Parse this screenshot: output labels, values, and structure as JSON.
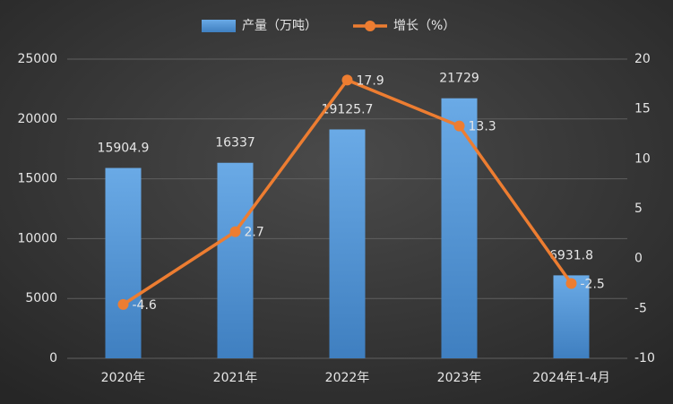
{
  "chart_data": {
    "type": "bar",
    "categories": [
      "2020年",
      "2021年",
      "2022年",
      "2023年",
      "2024年1-4月"
    ],
    "series": [
      {
        "name": "产量（万吨）",
        "type": "bar",
        "color": "#5b9bd5",
        "values": [
          15904.9,
          16337,
          19125.7,
          21729,
          6931.8
        ]
      },
      {
        "name": "增长（%）",
        "type": "line",
        "axis": "y2",
        "color": "#ed7d31",
        "values": [
          -4.6,
          2.7,
          17.9,
          13.3,
          -2.5
        ]
      }
    ],
    "ylim": [
      0,
      25000
    ],
    "yticks": [
      0,
      5000,
      10000,
      15000,
      20000,
      25000
    ],
    "y2lim": [
      -10,
      20
    ],
    "y2ticks": [
      -10,
      -5,
      0,
      5,
      10,
      15,
      20
    ],
    "grid": true,
    "legend": "top"
  }
}
